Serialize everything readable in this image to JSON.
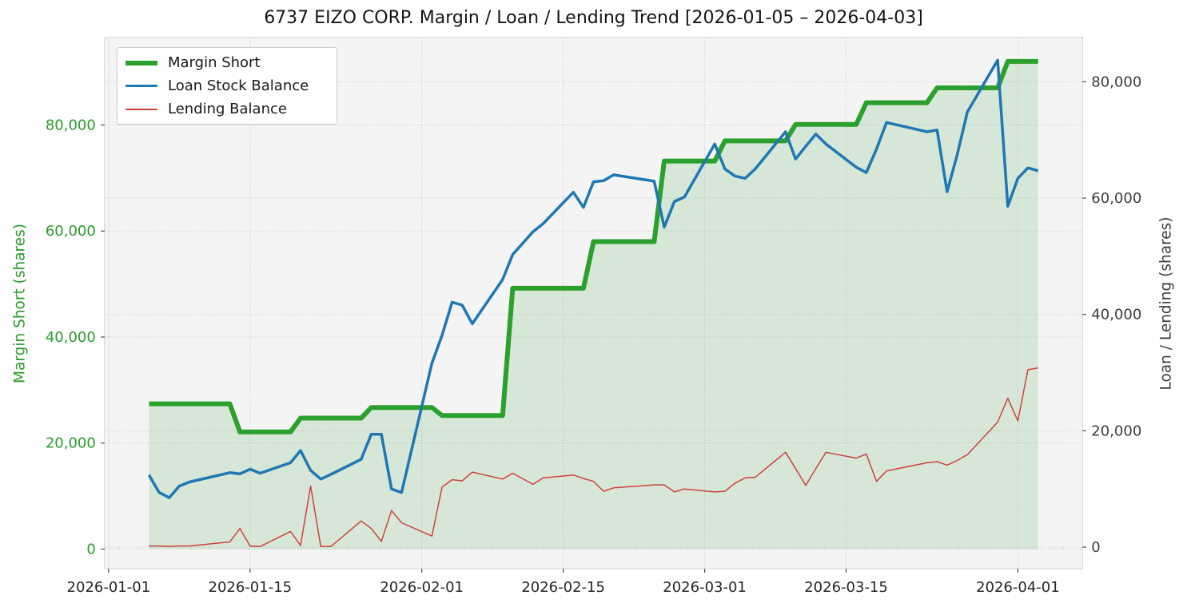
{
  "chart_data": {
    "type": "line",
    "title": "6737 EIZO CORP. Margin / Loan / Lending Trend [2026-01-05 – 2026-04-03]",
    "background_color": "#f4f4f5",
    "grid": {
      "on": true,
      "style": "dotted",
      "color": "#c8c8c8"
    },
    "x_axis": {
      "tick_labels": [
        "2026-01-01",
        "2026-01-15",
        "2026-02-01",
        "2026-02-15",
        "2026-03-01",
        "2026-03-15",
        "2026-04-01"
      ],
      "tick_color": "#262626"
    },
    "left_axis": {
      "label": "Margin Short (shares)",
      "color": "#2a9c2a",
      "tick_values": [
        0,
        20000,
        40000,
        60000,
        80000
      ],
      "ylim": [
        -3700,
        96500
      ]
    },
    "right_axis": {
      "label": "Loan / Lending (shares)",
      "color": "#3d3d3d",
      "tick_values": [
        0,
        20000,
        40000,
        60000,
        80000
      ],
      "ylim": [
        -3700,
        87600
      ]
    },
    "legend": {
      "position": "upper-left"
    },
    "dates": [
      "2026-01-05",
      "2026-01-06",
      "2026-01-07",
      "2026-01-08",
      "2026-01-09",
      "2026-01-13",
      "2026-01-14",
      "2026-01-15",
      "2026-01-16",
      "2026-01-19",
      "2026-01-20",
      "2026-01-21",
      "2026-01-22",
      "2026-01-23",
      "2026-01-26",
      "2026-01-27",
      "2026-01-28",
      "2026-01-29",
      "2026-01-30",
      "2026-02-02",
      "2026-02-03",
      "2026-02-04",
      "2026-02-05",
      "2026-02-06",
      "2026-02-09",
      "2026-02-10",
      "2026-02-12",
      "2026-02-13",
      "2026-02-16",
      "2026-02-17",
      "2026-02-18",
      "2026-02-19",
      "2026-02-20",
      "2026-02-24",
      "2026-02-25",
      "2026-02-26",
      "2026-02-27",
      "2026-03-02",
      "2026-03-03",
      "2026-03-04",
      "2026-03-05",
      "2026-03-06",
      "2026-03-09",
      "2026-03-10",
      "2026-03-11",
      "2026-03-12",
      "2026-03-13",
      "2026-03-16",
      "2026-03-17",
      "2026-03-18",
      "2026-03-19",
      "2026-03-23",
      "2026-03-24",
      "2026-03-25",
      "2026-03-26",
      "2026-03-27",
      "2026-03-30",
      "2026-03-31",
      "2026-04-01",
      "2026-04-02",
      "2026-04-03"
    ],
    "series": [
      {
        "name": "Margin Short",
        "axis": "left",
        "color": "#2ca02c",
        "line_width": 6,
        "area_fill": true,
        "fill_opacity": 0.15,
        "values": [
          27400,
          27400,
          27400,
          27400,
          27400,
          27400,
          22100,
          22100,
          22100,
          22100,
          24700,
          24700,
          24700,
          24700,
          24700,
          26700,
          26700,
          26700,
          26700,
          26700,
          25200,
          25200,
          25200,
          25200,
          25200,
          49200,
          49200,
          49200,
          49200,
          49200,
          58000,
          58000,
          58000,
          58000,
          73200,
          73200,
          73200,
          73200,
          77000,
          77000,
          77000,
          77000,
          77000,
          80100,
          80100,
          80100,
          80100,
          80100,
          84200,
          84200,
          84200,
          84200,
          87000,
          87000,
          87000,
          87000,
          87000,
          92000,
          92000,
          92000,
          92000
        ]
      },
      {
        "name": "Loan Stock Balance",
        "axis": "right",
        "color": "#1f77b4",
        "line_width": 3.5,
        "area_fill": false,
        "values": [
          12400,
          9400,
          8500,
          10500,
          11200,
          12800,
          12600,
          13400,
          12700,
          14500,
          16600,
          13200,
          11700,
          12500,
          15100,
          19400,
          19400,
          10000,
          9400,
          31600,
          36400,
          42100,
          41600,
          38400,
          46000,
          50300,
          54200,
          55600,
          61000,
          58400,
          62800,
          63000,
          64000,
          62900,
          55000,
          59400,
          60200,
          69300,
          65000,
          63800,
          63400,
          65000,
          71400,
          66700,
          68900,
          71000,
          69300,
          65300,
          64400,
          68400,
          73000,
          71400,
          71700,
          61100,
          67500,
          74800,
          83700,
          58600,
          63400,
          65200,
          64700
        ]
      },
      {
        "name": "Lending Balance",
        "axis": "right",
        "color": "#d04040",
        "line_width": 1.5,
        "area_fill": false,
        "values": [
          200,
          200,
          100,
          200,
          200,
          900,
          3200,
          200,
          100,
          2700,
          300,
          10500,
          100,
          100,
          4500,
          3200,
          1000,
          6300,
          4200,
          1900,
          10300,
          11600,
          11400,
          12900,
          11700,
          12700,
          10800,
          11900,
          12400,
          11800,
          11300,
          9600,
          10200,
          10700,
          10700,
          9500,
          10000,
          9500,
          9600,
          11000,
          11900,
          12000,
          16300,
          13500,
          10600,
          13500,
          16300,
          15300,
          16000,
          11300,
          13100,
          14500,
          14700,
          14100,
          14900,
          15900,
          21500,
          25600,
          21700,
          30500,
          30800
        ]
      }
    ]
  }
}
